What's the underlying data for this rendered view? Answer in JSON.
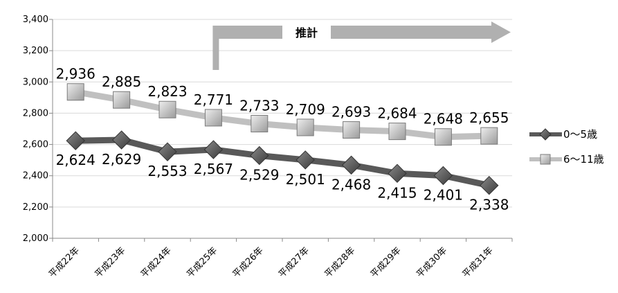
{
  "chart_data": {
    "type": "line",
    "categories": [
      "平成22年",
      "平成23年",
      "平成24年",
      "平成25年",
      "平成26年",
      "平成27年",
      "平成28年",
      "平成29年",
      "平成30年",
      "平成31年"
    ],
    "series": [
      {
        "name": "0～5歳",
        "color": "#595959",
        "marker": "diamond",
        "values": [
          2624,
          2629,
          2553,
          2567,
          2529,
          2501,
          2468,
          2415,
          2401,
          2338
        ],
        "labels": [
          "2,624",
          "2,629",
          "2,553",
          "2,567",
          "2,529",
          "2,501",
          "2,468",
          "2,415",
          "2,401",
          "2,338"
        ]
      },
      {
        "name": "6～11歳",
        "color": "#c0c0c0",
        "marker": "square",
        "values": [
          2936,
          2885,
          2823,
          2771,
          2733,
          2709,
          2693,
          2684,
          2648,
          2655
        ],
        "labels": [
          "2,936",
          "2,885",
          "2,823",
          "2,771",
          "2,733",
          "2,709",
          "2,693",
          "2,684",
          "2,648",
          "2,655"
        ]
      }
    ],
    "yticks": [
      "2,000",
      "2,200",
      "2,400",
      "2,600",
      "2,800",
      "3,000",
      "3,200",
      "3,400"
    ],
    "ylim": [
      2000,
      3400
    ],
    "ystep": 200,
    "grid": true,
    "legend": "right",
    "annotation": {
      "label": "推計",
      "start_category": "平成25年"
    }
  }
}
